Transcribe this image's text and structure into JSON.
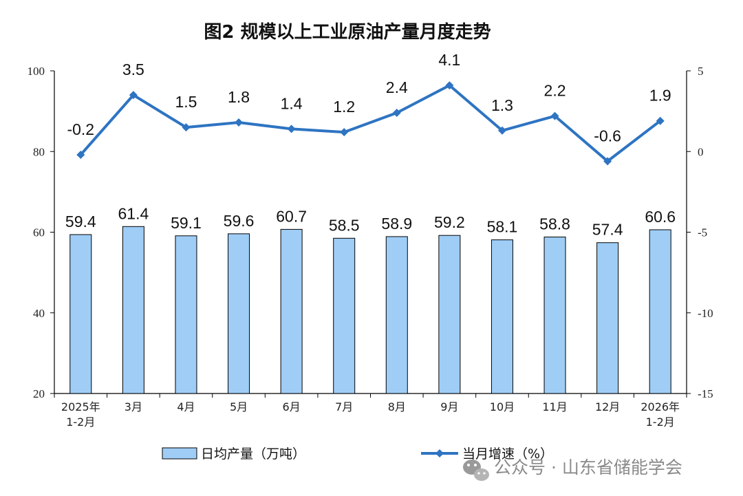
{
  "chart_data": {
    "type": "bar",
    "title": "图2  规模以上工业原油产量月度走势",
    "categories": [
      [
        "2025年",
        "1-2月"
      ],
      [
        "3月"
      ],
      [
        "4月"
      ],
      [
        "5月"
      ],
      [
        "6月"
      ],
      [
        "7月"
      ],
      [
        "8月"
      ],
      [
        "9月"
      ],
      [
        "10月"
      ],
      [
        "11月"
      ],
      [
        "12月"
      ],
      [
        "2026年",
        "1-2月"
      ]
    ],
    "series": [
      {
        "name": "日均产量（万吨）",
        "type": "bar",
        "axis": "left",
        "color": "#9fcdf6",
        "values": [
          59.4,
          61.4,
          59.1,
          59.6,
          60.7,
          58.5,
          58.9,
          59.2,
          58.1,
          58.8,
          57.4,
          60.6
        ]
      },
      {
        "name": "当月增速（%）",
        "type": "line",
        "axis": "right",
        "color": "#2e74c2",
        "values": [
          -0.2,
          3.5,
          1.5,
          1.8,
          1.4,
          1.2,
          2.4,
          4.1,
          1.3,
          2.2,
          -0.6,
          1.9
        ]
      }
    ],
    "y_left": {
      "ylim": [
        20,
        100
      ],
      "ticks": [
        "20",
        "40",
        "60",
        "80",
        "100"
      ]
    },
    "y_right": {
      "ylim": [
        -15,
        5
      ],
      "ticks": [
        "-15",
        "-10",
        "-5",
        "0",
        "5"
      ]
    },
    "grid": false,
    "legend_position": "bottom"
  },
  "watermark": {
    "text": "公众号 · 山东省储能学会",
    "icon": "wechat-icon"
  }
}
